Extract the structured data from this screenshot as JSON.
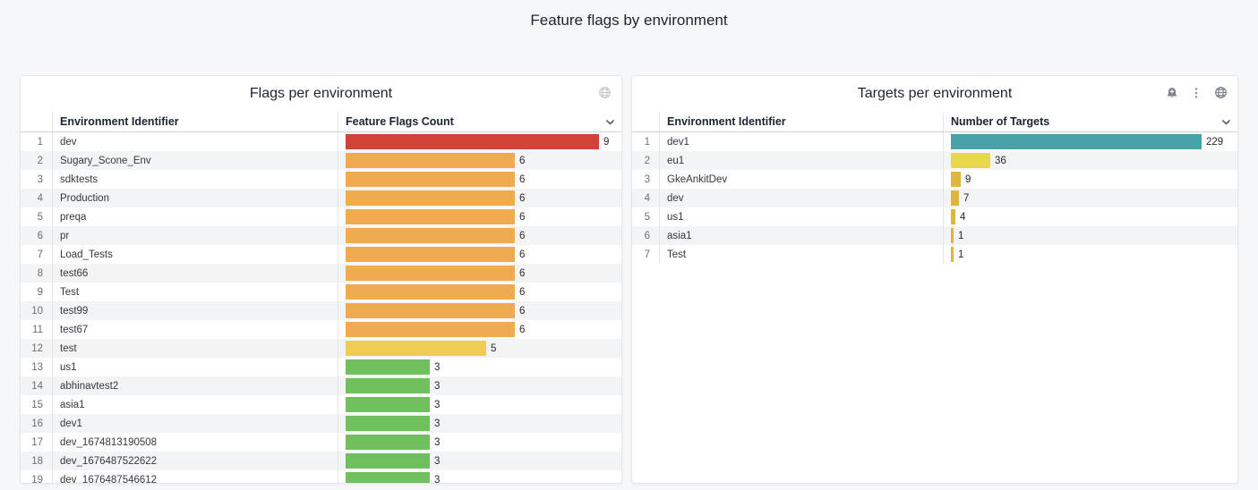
{
  "page": {
    "title": "Feature flags by environment"
  },
  "colors": {
    "red": "#cf4437",
    "orange": "#efab4f",
    "yellow": "#efcc54",
    "green": "#70c05e",
    "teal": "#46a1a8",
    "bright_yellow": "#e7d84b",
    "amber": "#dfb63d"
  },
  "panels": [
    {
      "title": "Flags per environment",
      "columns": {
        "identifier": "Environment Identifier",
        "value": "Feature Flags Count"
      },
      "icons": [
        "globe-icon"
      ]
    },
    {
      "title": "Targets per environment",
      "columns": {
        "identifier": "Environment Identifier",
        "value": "Number of Targets"
      },
      "icons": [
        "alert-bell-icon",
        "kebab-menu-icon",
        "globe-icon"
      ]
    }
  ],
  "chart_data": [
    {
      "type": "bar",
      "orientation": "horizontal",
      "title": "Flags per environment",
      "categories": [
        "dev",
        "Sugary_Scone_Env",
        "sdktests",
        "Production",
        "preqa",
        "pr",
        "Load_Tests",
        "test66",
        "Test",
        "test99",
        "test67",
        "test",
        "us1",
        "abhinavtest2",
        "asia1",
        "dev1",
        "dev_1674813190508",
        "dev_1676487522622",
        "dev_1676487546612"
      ],
      "values": [
        9,
        6,
        6,
        6,
        6,
        6,
        6,
        6,
        6,
        6,
        6,
        5,
        3,
        3,
        3,
        3,
        3,
        3,
        3
      ],
      "bar_colors": [
        "red",
        "orange",
        "orange",
        "orange",
        "orange",
        "orange",
        "orange",
        "orange",
        "orange",
        "orange",
        "orange",
        "yellow",
        "green",
        "green",
        "green",
        "green",
        "green",
        "green",
        "green"
      ],
      "category_axis_label": "Environment Identifier",
      "value_axis_label": "Feature Flags Count",
      "xlim": [
        0,
        9
      ],
      "value_labels_shown": true,
      "legend": "none"
    },
    {
      "type": "bar",
      "orientation": "horizontal",
      "title": "Targets per environment",
      "categories": [
        "dev1",
        "eu1",
        "GkeAnkitDev",
        "dev",
        "us1",
        "asia1",
        "Test"
      ],
      "values": [
        229,
        36,
        9,
        7,
        4,
        1,
        1
      ],
      "bar_colors": [
        "teal",
        "bright_yellow",
        "amber",
        "amber",
        "amber",
        "amber",
        "amber"
      ],
      "category_axis_label": "Environment Identifier",
      "value_axis_label": "Number of Targets",
      "xlim": [
        0,
        229
      ],
      "value_labels_shown": true,
      "legend": "none"
    }
  ]
}
